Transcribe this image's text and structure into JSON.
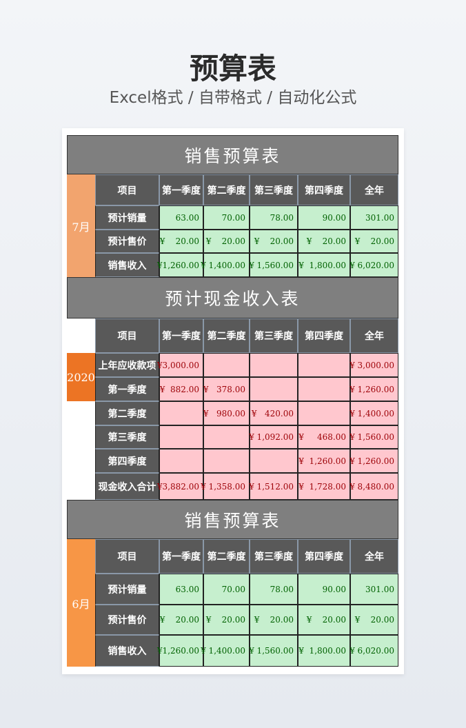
{
  "header": {
    "title": "预算表",
    "subtitle": "Excel格式 / 自带格式 / 自动化公式"
  },
  "colors": {
    "title_bar": "#7f7f7f",
    "header_cell": "#595959",
    "green_fill": "#c6efce",
    "pink_fill": "#ffc7ce",
    "month_7": "#f2a46e",
    "year_2020": "#ec7424",
    "month_6": "#f79646"
  },
  "tables": [
    {
      "title": "销售预算表",
      "side_label": "7月",
      "columns": [
        "项目",
        "第一季度",
        "第二季度",
        "第三季度",
        "第四季度",
        "全年"
      ],
      "rows": [
        {
          "label": "预计销量",
          "cells": [
            "63.00",
            "70.00",
            "78.00",
            "90.00",
            "301.00"
          ]
        },
        {
          "label": "预计售价",
          "cells": [
            "¥    20.00",
            "¥    20.00",
            "¥    20.00",
            "¥    20.00",
            "¥    20.00"
          ]
        },
        {
          "label": "销售收入",
          "cells": [
            "¥1,260.00",
            "¥ 1,400.00",
            "¥ 1,560.00",
            "¥  1,800.00",
            "¥ 6,020.00"
          ]
        }
      ]
    },
    {
      "title": "预计现金收入表",
      "side_label": "2020",
      "columns": [
        "项目",
        "第一季度",
        "第二季度",
        "第三季度",
        "第四季度",
        "全年"
      ],
      "rows": [
        {
          "label": "上年应收款项",
          "cells": [
            "¥3,000.00",
            "",
            "",
            "",
            "¥ 3,000.00"
          ]
        },
        {
          "label": "第一季度",
          "cells": [
            "¥  882.00",
            "¥   378.00",
            "",
            "",
            "¥ 1,260.00"
          ]
        },
        {
          "label": "第二季度",
          "cells": [
            "",
            "¥   980.00",
            "¥   420.00",
            "",
            "¥ 1,400.00"
          ]
        },
        {
          "label": "第三季度",
          "cells": [
            "",
            "",
            "¥ 1,092.00",
            "¥     468.00",
            "¥ 1,560.00"
          ]
        },
        {
          "label": "第四季度",
          "cells": [
            "",
            "",
            "",
            "¥  1,260.00",
            "¥ 1,260.00"
          ]
        },
        {
          "label": "现金收入合计",
          "cells": [
            "¥3,882.00",
            "¥ 1,358.00",
            "¥ 1,512.00",
            "¥  1,728.00",
            "¥ 8,480.00"
          ]
        }
      ]
    },
    {
      "title": "销售预算表",
      "side_label": "6月",
      "columns": [
        "项目",
        "第一季度",
        "第二季度",
        "第三季度",
        "第四季度",
        "全年"
      ],
      "rows": [
        {
          "label": "预计销量",
          "cells": [
            "63.00",
            "70.00",
            "78.00",
            "90.00",
            "301.00"
          ]
        },
        {
          "label": "预计售价",
          "cells": [
            "¥    20.00",
            "¥    20.00",
            "¥    20.00",
            "¥    20.00",
            "¥    20.00"
          ]
        },
        {
          "label": "销售收入",
          "cells": [
            "¥1,260.00",
            "¥ 1,400.00",
            "¥ 1,560.00",
            "¥  1,800.00",
            "¥ 6,020.00"
          ]
        }
      ]
    }
  ]
}
